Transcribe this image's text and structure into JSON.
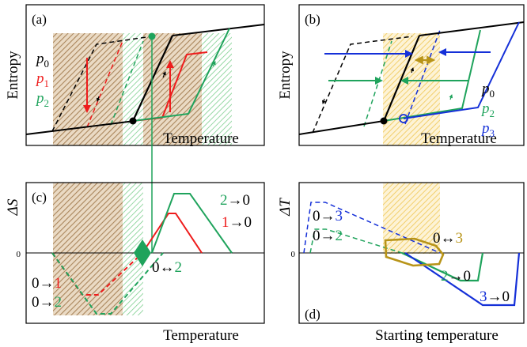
{
  "colors": {
    "black": "#000000",
    "red": "#ee1c1c",
    "green": "#1fa35c",
    "blue": "#1530d8",
    "olive": "#b89418",
    "brown_hatch": "#a0784a",
    "green_hatch": "#7ecf8f",
    "yellow_hatch": "#f2cf6c"
  },
  "panel_a": {
    "tag": "(a)",
    "ylabel": "Entropy",
    "xlabel": "Temperature",
    "legend": [
      {
        "sym": "p",
        "sub": "0",
        "color": "#000000"
      },
      {
        "sym": "p",
        "sub": "1",
        "color": "#ee1c1c"
      },
      {
        "sym": "p",
        "sub": "2",
        "color": "#1fa35c"
      }
    ]
  },
  "panel_b": {
    "tag": "(b)",
    "ylabel": "Entropy",
    "xlabel": "Temperature",
    "legend": [
      {
        "sym": "p",
        "sub": "0",
        "color": "#000000"
      },
      {
        "sym": "p",
        "sub": "2",
        "color": "#1fa35c"
      },
      {
        "sym": "p",
        "sub": "3",
        "color": "#1530d8"
      }
    ]
  },
  "panel_c": {
    "tag": "(c)",
    "ylabel": "ΔS",
    "xlabel": "Temperature",
    "zero": "0",
    "labels": {
      "two_to_zero": {
        "a": "2",
        "arrow": "→",
        "b": "0"
      },
      "one_to_zero": {
        "a": "1",
        "arrow": "→",
        "b": "0"
      },
      "zero_to_one": {
        "a": "0",
        "arrow": "→",
        "b": "1"
      },
      "zero_to_two": {
        "a": "0",
        "arrow": "→",
        "b": "2"
      },
      "zero_bi_two": {
        "a": "0",
        "arrow": "↔",
        "b": "2"
      }
    }
  },
  "panel_d": {
    "tag": "(d)",
    "ylabel": "ΔT",
    "xlabel": "Starting temperature",
    "zero": "0",
    "labels": {
      "zero_to_three": {
        "a": "0",
        "arrow": "→",
        "b": "3"
      },
      "zero_to_two": {
        "a": "0",
        "arrow": "→",
        "b": "2"
      },
      "zero_bi_three": {
        "a": "0",
        "arrow": "↔",
        "b": "3"
      },
      "two_to_zero": {
        "a": "2",
        "arrow": "→",
        "b": "0"
      },
      "three_to_zero": {
        "a": "3",
        "arrow": "→",
        "b": "0"
      }
    }
  }
}
